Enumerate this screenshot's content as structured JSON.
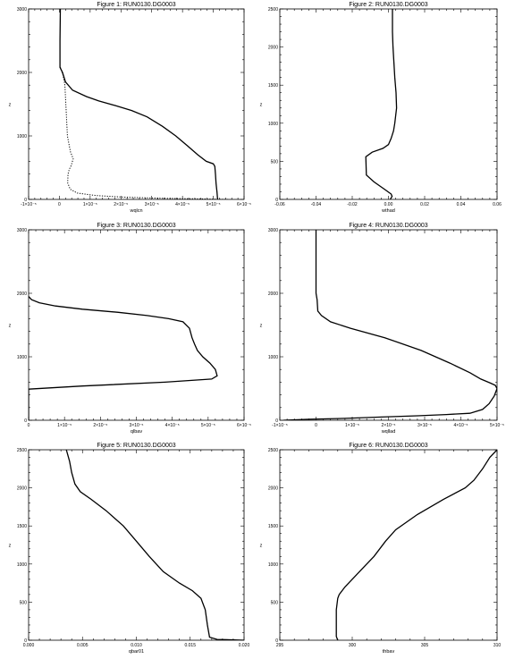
{
  "chart_data": [
    {
      "type": "line",
      "title": "Figure 1: RUN0130.DG0003",
      "xlabel": "wqlcn",
      "ylabel": "z",
      "xlim": [
        -1e-05,
        6e-05
      ],
      "ylim": [
        0,
        3000
      ],
      "xticks": [
        -1e-05,
        0,
        1e-05,
        2e-05,
        3e-05,
        4e-05,
        5e-05,
        6e-05
      ],
      "xtick_labels": [
        "-1×10⁻⁵",
        "0",
        "1×10⁻⁵",
        "2×10⁻⁵",
        "3×10⁻⁵",
        "4×10⁻⁵",
        "5×10⁻⁵",
        "6×10⁻⁵"
      ],
      "yticks": [
        0,
        1000,
        2000,
        3000
      ],
      "ytick_labels": [
        "0",
        "1000",
        "2000",
        "3000"
      ],
      "series": [
        {
          "style": "solid",
          "x": [
            5.14e-05,
            5.12e-05,
            5.09e-05,
            5.07e-05,
            5.05e-05,
            5e-05,
            4.77e-05,
            4.5e-05,
            4.15e-05,
            3.78e-05,
            3.35e-05,
            2.85e-05,
            2.35e-05,
            1.8e-05,
            1.28e-05,
            8.8e-06,
            4.3e-06,
            2e-06,
            1e-06,
            2e-07,
            2e-07,
            3e-07
          ],
          "y": [
            0,
            120,
            250,
            400,
            520,
            560,
            600,
            700,
            850,
            1000,
            1150,
            1300,
            1400,
            1480,
            1550,
            1620,
            1720,
            1850,
            2000,
            2080,
            2500,
            3000
          ]
        },
        {
          "style": "dotted",
          "x": [
            5.48e-05,
            4.5e-05,
            3.3e-05,
            2.1e-05,
            1.2e-05,
            5.8e-06,
            3.5e-06,
            2.7e-06,
            2.8e-06,
            3.2e-06,
            3.8e-06,
            4.5e-06,
            3.6e-06,
            2.6e-06,
            2.2e-06,
            1.8e-06,
            1.2e-06,
            3e-07
          ],
          "y": [
            0,
            8,
            18,
            35,
            60,
            100,
            160,
            260,
            400,
            470,
            530,
            640,
            750,
            1000,
            1400,
            1800,
            1950,
            2080
          ]
        }
      ]
    },
    {
      "type": "line",
      "title": "Figure 2: RUN0130.DG0003",
      "xlabel": "wthad",
      "ylabel": "z",
      "xlim": [
        -0.06,
        0.06
      ],
      "ylim": [
        0,
        2500
      ],
      "xticks": [
        -0.06,
        -0.04,
        -0.02,
        0,
        0.02,
        0.04,
        0.06
      ],
      "xtick_labels": [
        "-0.06",
        "-0.04",
        "-0.02",
        "0.00",
        "0.02",
        "0.04",
        "0.06"
      ],
      "yticks": [
        0,
        500,
        1000,
        1500,
        2000,
        2500
      ],
      "ytick_labels": [
        "0",
        "500",
        "1000",
        "1500",
        "2000",
        "2500"
      ],
      "series": [
        {
          "style": "solid",
          "x": [
            0.001,
            0.002,
            0.0015,
            -0.002,
            -0.008,
            -0.0122,
            -0.0125,
            -0.009,
            -0.003,
            0,
            0.0015,
            0.0028,
            0.0035,
            0.0045,
            0.0042,
            0.0035,
            0.003,
            0.0025,
            0.0022,
            0.0022
          ],
          "y": [
            0,
            40,
            70,
            130,
            230,
            320,
            560,
            620,
            670,
            720,
            800,
            900,
            1000,
            1200,
            1400,
            1600,
            1800,
            2000,
            2200,
            2500
          ]
        }
      ]
    },
    {
      "type": "line",
      "title": "Figure 3: RUN0130.DG0003",
      "xlabel": "qlbav",
      "ylabel": "z",
      "xlim": [
        0,
        6e-05
      ],
      "ylim": [
        0,
        3000
      ],
      "xticks": [
        0,
        1e-05,
        2e-05,
        3e-05,
        4e-05,
        5e-05,
        6e-05
      ],
      "xtick_labels": [
        "0",
        "1×10⁻⁵",
        "2×10⁻⁵",
        "3×10⁻⁵",
        "4×10⁻⁵",
        "5×10⁻⁵",
        "6×10⁻⁵"
      ],
      "yticks": [
        0,
        1000,
        2000,
        3000
      ],
      "ytick_labels": [
        "0",
        "1000",
        "2000",
        "3000"
      ],
      "series": [
        {
          "style": "solid",
          "x": [
            0,
            0,
            1.5e-05,
            3.8e-05,
            5.1e-05,
            5.25e-05,
            5.2e-05,
            5.05e-05,
            4.85e-05,
            4.7e-05,
            4.62e-05,
            4.55e-05,
            4.48e-05,
            4.3e-05,
            3.9e-05,
            3.3e-05,
            2.5e-05,
            1.5e-05,
            7.5e-06,
            3e-06,
            8e-07,
            0
          ],
          "y": [
            0,
            490,
            540,
            600,
            650,
            700,
            800,
            900,
            1000,
            1100,
            1200,
            1300,
            1450,
            1550,
            1600,
            1650,
            1700,
            1750,
            1800,
            1850,
            1900,
            1950
          ]
        }
      ]
    },
    {
      "type": "line",
      "title": "Figure 4: RUN0130.DG0003",
      "xlabel": "wqllad",
      "ylabel": "z",
      "xlim": [
        -1e-05,
        5e-05
      ],
      "ylim": [
        0,
        3000
      ],
      "xticks": [
        -1e-05,
        0,
        1e-05,
        2e-05,
        3e-05,
        4e-05,
        5e-05
      ],
      "xtick_labels": [
        "-1×10⁻⁵",
        "0",
        "1×10⁻⁵",
        "2×10⁻⁵",
        "3×10⁻⁵",
        "4×10⁻⁵",
        "5×10⁻⁵"
      ],
      "yticks": [
        0,
        1000,
        2000,
        3000
      ],
      "ytick_labels": [
        "0",
        "1000",
        "2000",
        "3000"
      ],
      "series": [
        {
          "style": "solid",
          "x": [
            -9e-06,
            -2e-06,
            8e-06,
            1.8e-05,
            2.8e-05,
            3.6e-05,
            4.25e-05,
            4.6e-05,
            4.78e-05,
            4.92e-05,
            5e-05,
            4.95e-05,
            4.8e-05,
            4.55e-05,
            4.25e-05,
            3.7e-05,
            2.9e-05,
            1.9e-05,
            9.5e-06,
            4e-06,
            1.5e-06,
            5e-07,
            3e-07,
            0,
            0,
            0
          ],
          "y": [
            0,
            15,
            30,
            50,
            70,
            90,
            110,
            170,
            260,
            380,
            500,
            550,
            590,
            650,
            750,
            900,
            1100,
            1300,
            1450,
            1550,
            1650,
            1720,
            1900,
            2000,
            2200,
            3000
          ]
        }
      ]
    },
    {
      "type": "line",
      "title": "Figure 5: RUN0130.DG0003",
      "xlabel": "qbar01",
      "ylabel": "z",
      "xlim": [
        0,
        0.02
      ],
      "ylim": [
        0,
        2500
      ],
      "xticks": [
        0,
        0.005,
        0.01,
        0.015,
        0.02
      ],
      "xtick_labels": [
        "0.000",
        "0.005",
        "0.010",
        "0.015",
        "0.020"
      ],
      "yticks": [
        0,
        500,
        1000,
        1500,
        2000,
        2500
      ],
      "ytick_labels": [
        "0",
        "500",
        "1000",
        "1500",
        "2000",
        "2500"
      ],
      "series": [
        {
          "style": "solid",
          "x": [
            0.02,
            0.0175,
            0.0168,
            0.0166,
            0.0164,
            0.016,
            0.0152,
            0.014,
            0.0125,
            0.0112,
            0.01,
            0.0088,
            0.0072,
            0.0058,
            0.0048,
            0.0043,
            0.004,
            0.0038,
            0.0035
          ],
          "y": [
            0,
            10,
            40,
            200,
            400,
            550,
            650,
            750,
            900,
            1100,
            1300,
            1500,
            1700,
            1850,
            1950,
            2050,
            2200,
            2350,
            2500
          ]
        }
      ]
    },
    {
      "type": "line",
      "title": "Figure 6: RUN0130.DG0003",
      "xlabel": "thbav",
      "ylabel": "z",
      "xlim": [
        295,
        310
      ],
      "ylim": [
        0,
        2500
      ],
      "xticks": [
        295,
        300,
        305,
        310
      ],
      "xtick_labels": [
        "295",
        "300",
        "305",
        "310"
      ],
      "yticks": [
        0,
        500,
        1000,
        1500,
        2000,
        2500
      ],
      "ytick_labels": [
        "0",
        "500",
        "1000",
        "1500",
        "2000",
        "2500"
      ],
      "series": [
        {
          "style": "solid",
          "x": [
            299,
            298.9,
            298.9,
            298.9,
            299,
            299.1,
            299.5,
            300.5,
            301.5,
            302.3,
            303,
            304.5,
            306.3,
            307.8,
            308.4,
            309,
            309.5,
            310
          ],
          "y": [
            0,
            50,
            200,
            400,
            550,
            600,
            700,
            900,
            1100,
            1300,
            1450,
            1650,
            1850,
            2000,
            2100,
            2250,
            2400,
            2500
          ]
        }
      ]
    }
  ]
}
